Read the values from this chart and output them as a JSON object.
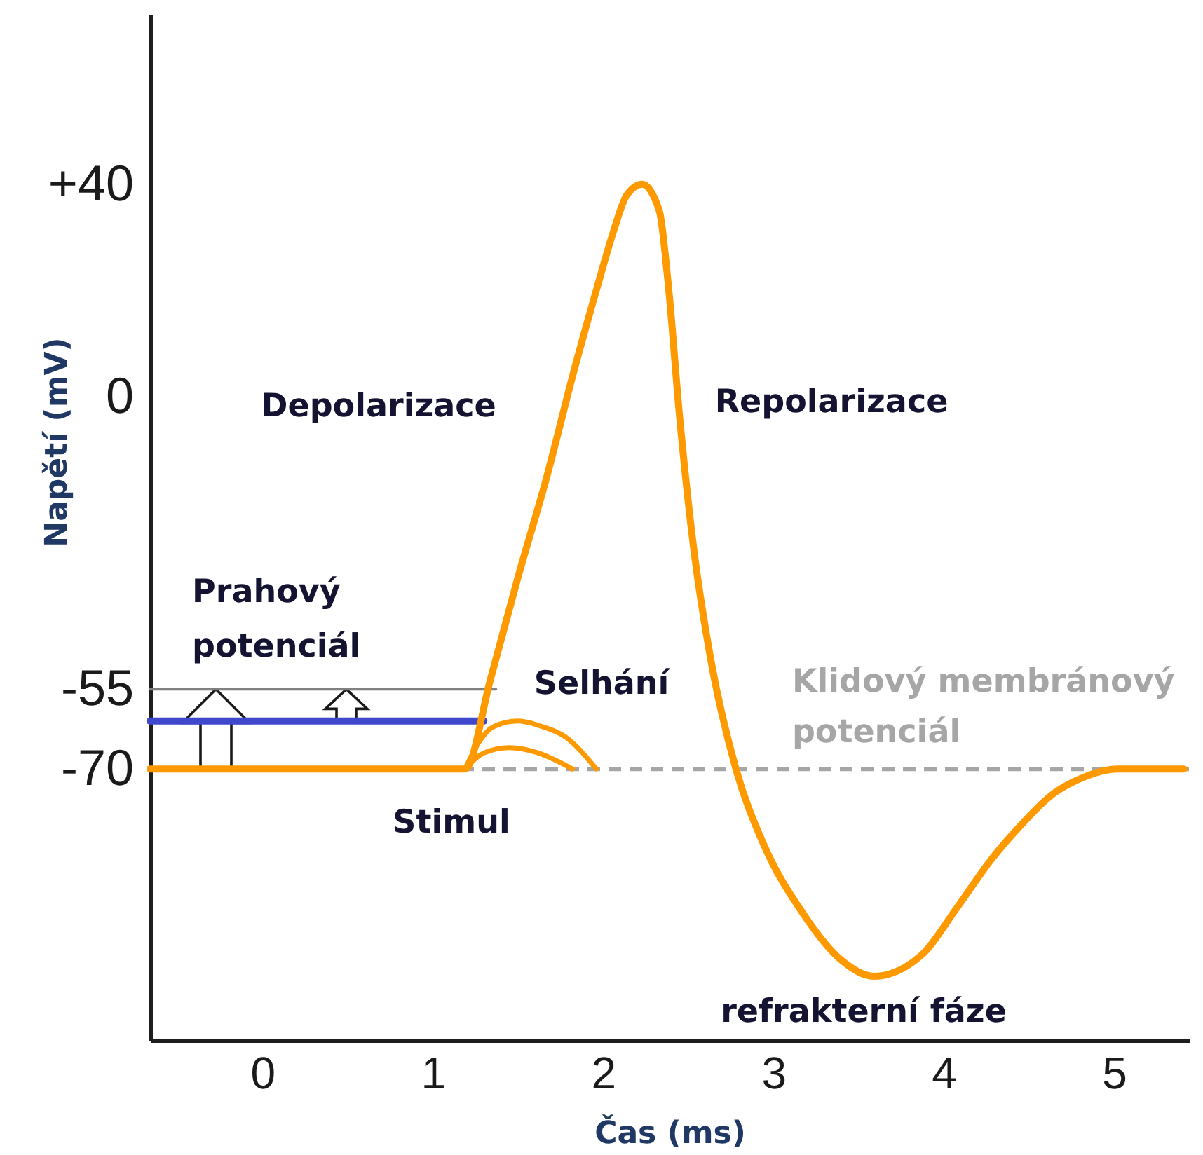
{
  "chart_data": {
    "type": "line",
    "xlabel": "Čas (ms)",
    "ylabel": "Napětí (mV)",
    "xlim": [
      -0.66,
      5.44
    ],
    "ylim": [
      -121,
      72
    ],
    "xticks": [
      0,
      1,
      2,
      3,
      4,
      5
    ],
    "yticks": [
      {
        "value": 40,
        "label": "+40"
      },
      0,
      -55,
      -70
    ],
    "series": [
      {
        "color": "#808080",
        "x": [
          -0.66,
          1.37
        ],
        "values": [
          -55,
          -55
        ]
      },
      {
        "color": "#3f48cc",
        "x": [
          -0.66,
          1.3
        ],
        "values": [
          -61,
          -61
        ]
      },
      {
        "color": "#ff9900",
        "x": [
          1.19,
          1.27,
          1.36,
          1.5,
          1.64,
          1.78,
          1.96
        ],
        "values": [
          -70,
          -65,
          -62,
          -61,
          -62,
          -64,
          -70
        ]
      },
      {
        "color": "#ff9900",
        "x": [
          1.19,
          1.3,
          1.45,
          1.62,
          1.82
        ],
        "values": [
          -70,
          -67,
          -66,
          -67,
          -70
        ]
      },
      {
        "color": "#ff9900",
        "x": [
          -0.66,
          1.19,
          1.34,
          1.5,
          1.67,
          1.83,
          1.96,
          2.06,
          2.14,
          2.23,
          2.33,
          2.38,
          2.45,
          2.53,
          2.63,
          2.78,
          2.94,
          3.17,
          3.4,
          3.59,
          3.87,
          4.08,
          4.28,
          4.47,
          4.63,
          4.79,
          5.02,
          5.41
        ],
        "values": [
          -70,
          -70,
          -53,
          -34,
          -15,
          5,
          20,
          31,
          38,
          40,
          35,
          22,
          -4,
          -28,
          -49,
          -70,
          -84,
          -97,
          -106,
          -109,
          -105,
          -96,
          -87,
          -80,
          -75,
          -72,
          -70,
          -70
        ]
      }
    ],
    "ref_lines": [
      {
        "axis": "y",
        "value": -70,
        "label": "Klidový membránový potenciál",
        "color": "#a6a6a6",
        "line_style": "dashed"
      }
    ],
    "annotations": [
      "Depolarizace",
      "Repolarizace",
      "Prahový potenciál",
      "Selhání",
      "Stimul",
      "refrakterní fáze"
    ]
  }
}
